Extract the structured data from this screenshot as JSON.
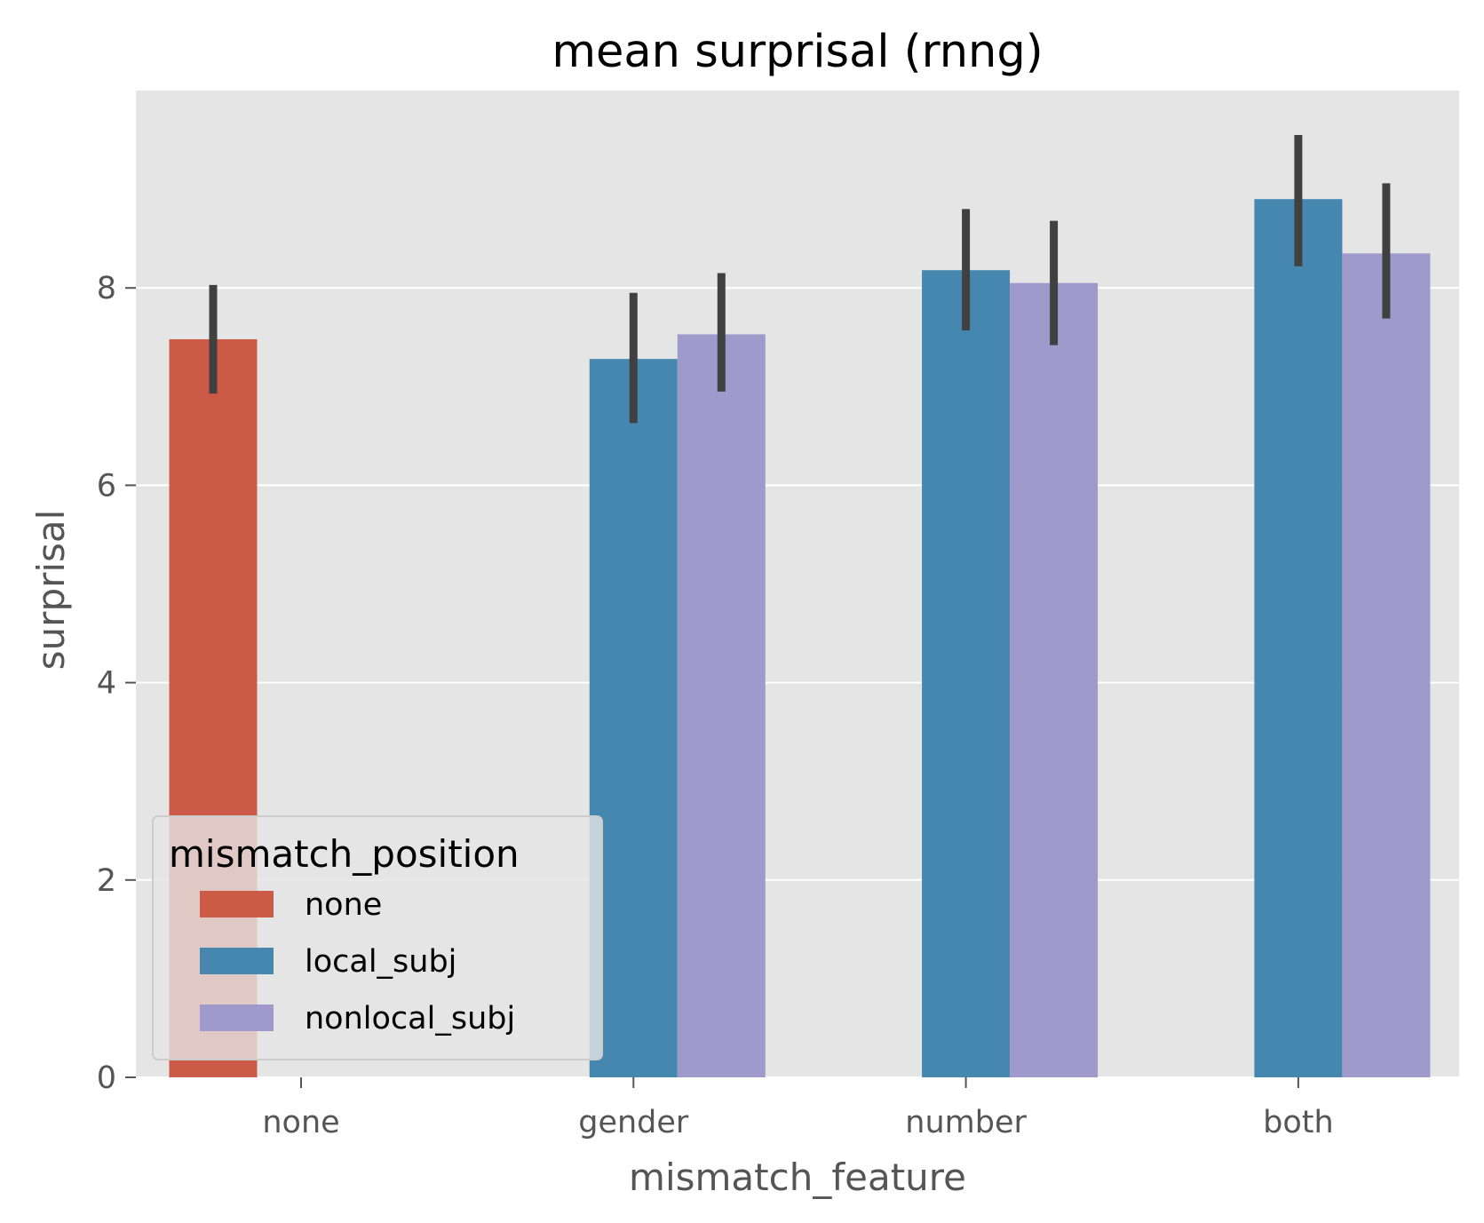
{
  "chart_data": {
    "type": "bar",
    "title": "mean surprisal (rnng)",
    "xlabel": "mismatch_feature",
    "ylabel": "surprisal",
    "categories": [
      "none",
      "gender",
      "number",
      "both"
    ],
    "ylim": [
      0,
      10
    ],
    "yticks": [
      0,
      2,
      4,
      6,
      8
    ],
    "grid": true,
    "legend": {
      "title": "mismatch_position",
      "placement": "lower-left"
    },
    "series": [
      {
        "name": "none",
        "color": "#cb5a47",
        "values": [
          7.48,
          null,
          null,
          null
        ],
        "ci_low": [
          6.93,
          null,
          null,
          null
        ],
        "ci_high": [
          8.03,
          null,
          null,
          null
        ]
      },
      {
        "name": "local_subj",
        "color": "#4587ae",
        "values": [
          null,
          7.28,
          8.18,
          8.9
        ],
        "ci_low": [
          null,
          6.63,
          7.57,
          8.22
        ],
        "ci_high": [
          null,
          7.95,
          8.8,
          9.55
        ]
      },
      {
        "name": "nonlocal_subj",
        "color": "#9f99cc",
        "values": [
          null,
          7.53,
          8.05,
          8.35
        ],
        "ci_low": [
          null,
          6.95,
          7.42,
          7.69
        ],
        "ci_high": [
          null,
          8.15,
          8.68,
          9.06
        ]
      }
    ],
    "errorbar_color": "#404040",
    "plot_background": "#e5e5e5",
    "grid_color": "#ffffff"
  }
}
